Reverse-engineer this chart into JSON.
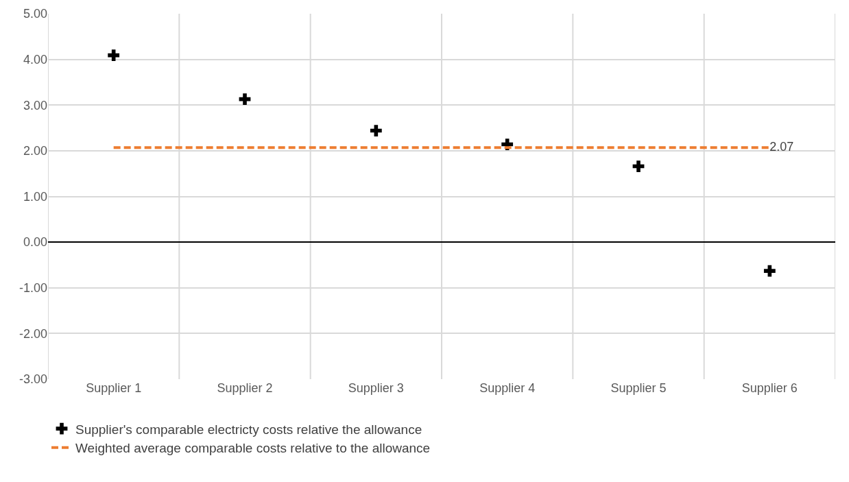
{
  "chart_data": {
    "type": "scatter",
    "categories": [
      "Supplier 1",
      "Supplier 2",
      "Supplier 3",
      "Supplier 4",
      "Supplier 5",
      "Supplier 6"
    ],
    "series": [
      {
        "name": "Supplier's comparable electricty costs relative the allowance",
        "marker": "cross",
        "color": "#000000",
        "values": [
          4.09,
          3.13,
          2.44,
          2.14,
          1.66,
          -0.63
        ]
      },
      {
        "name": "Weighted average comparable costs relative to the allowance",
        "type": "line",
        "marker": "none",
        "line_style": "dashed",
        "color": "#ed7d31",
        "values": [
          2.07,
          2.07,
          2.07,
          2.07,
          2.07,
          2.07
        ],
        "value_labels": [
          null,
          null,
          null,
          null,
          null,
          "2.07"
        ]
      }
    ],
    "ylim": [
      -3,
      5
    ],
    "yticks": [
      {
        "value": -3,
        "label": "-3.00"
      },
      {
        "value": -2,
        "label": "-2.00"
      },
      {
        "value": -1,
        "label": "-1.00"
      },
      {
        "value": 0,
        "label": "0.00"
      },
      {
        "value": 1,
        "label": "1.00"
      },
      {
        "value": 2,
        "label": "2.00"
      },
      {
        "value": 3,
        "label": "3.00"
      },
      {
        "value": 4,
        "label": "4.00"
      },
      {
        "value": 5,
        "label": "5.00"
      }
    ],
    "grid": true,
    "legend": "bottom"
  }
}
